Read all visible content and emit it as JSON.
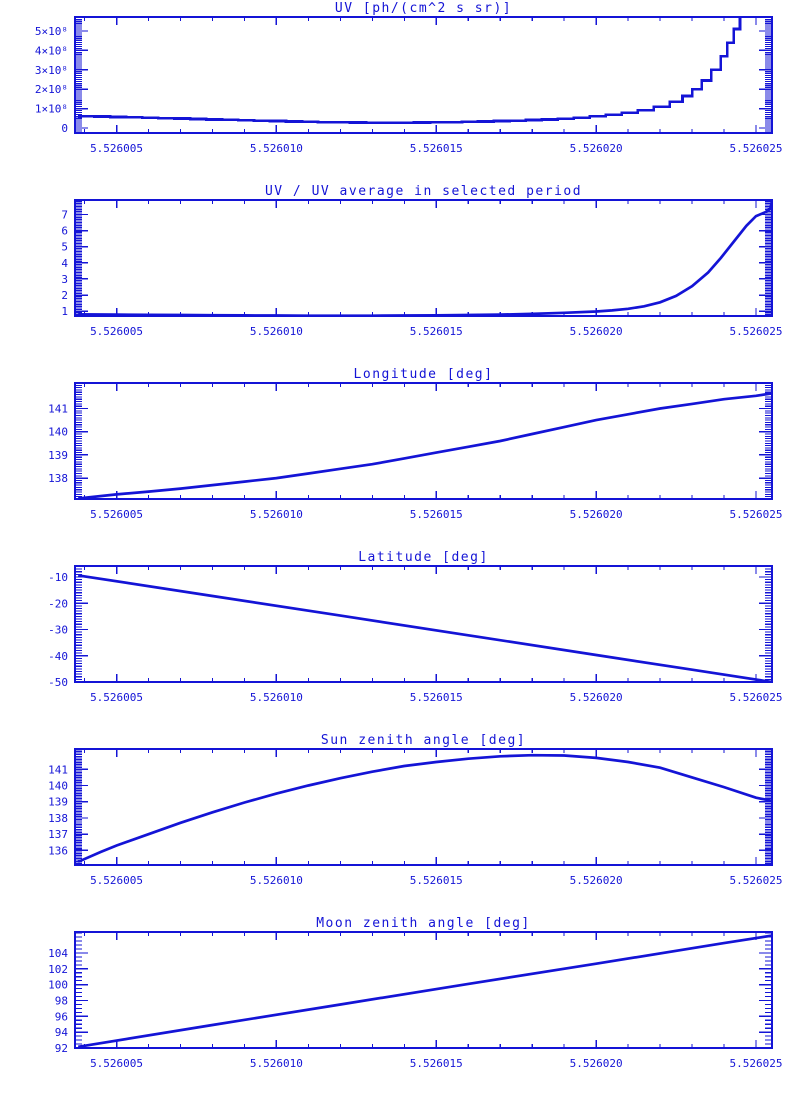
{
  "page": {
    "background": "#ffffff",
    "plot_color": "#1414d6",
    "layout": "six stacked line plots, shared x axis range"
  },
  "chart_data": [
    {
      "type": "line",
      "title": "UV [ph/(cm^2 s sr)]",
      "step": true,
      "xlim": [
        5.5260037,
        5.5260255
      ],
      "xticks": [
        5.526005,
        5.52601,
        5.526015,
        5.52602,
        5.526025
      ],
      "xtick_labels": [
        "5.526005",
        "5.526010",
        "5.526015",
        "5.526020",
        "5.526025"
      ],
      "xminor": 1e-06,
      "ylim": [
        -0.26,
        5.72
      ],
      "yticks": [
        0,
        1,
        2,
        3,
        4,
        5
      ],
      "ytick_labels": [
        "0",
        "1×10⁸",
        "2×10⁸",
        "3×10⁸",
        "4×10⁸",
        "5×10⁸"
      ],
      "yminor": 0.1,
      "y_scale_note": "y values in units of 10^8",
      "x": [
        5.5260038,
        5.5260043,
        5.5260048,
        5.5260053,
        5.5260058,
        5.5260063,
        5.5260068,
        5.5260073,
        5.5260078,
        5.5260083,
        5.5260088,
        5.5260093,
        5.5260098,
        5.5260103,
        5.5260108,
        5.5260113,
        5.5260118,
        5.5260123,
        5.5260128,
        5.5260133,
        5.5260138,
        5.5260143,
        5.5260148,
        5.5260153,
        5.5260158,
        5.5260163,
        5.5260168,
        5.5260173,
        5.5260178,
        5.5260183,
        5.5260188,
        5.5260193,
        5.5260198,
        5.5260203,
        5.5260208,
        5.5260213,
        5.5260218,
        5.5260223,
        5.5260227,
        5.526023,
        5.5260233,
        5.5260236,
        5.5260239,
        5.5260241,
        5.5260243,
        5.5260245
      ],
      "y": [
        0.6,
        0.59,
        0.57,
        0.55,
        0.53,
        0.51,
        0.49,
        0.46,
        0.44,
        0.42,
        0.4,
        0.38,
        0.36,
        0.34,
        0.32,
        0.3,
        0.29,
        0.28,
        0.27,
        0.27,
        0.27,
        0.28,
        0.29,
        0.3,
        0.32,
        0.34,
        0.36,
        0.38,
        0.41,
        0.44,
        0.48,
        0.53,
        0.6,
        0.68,
        0.78,
        0.92,
        1.1,
        1.35,
        1.65,
        2.0,
        2.45,
        3.0,
        3.7,
        4.4,
        5.1,
        5.72
      ]
    },
    {
      "type": "line",
      "title": "UV / UV average in selected period",
      "step": false,
      "xlim": [
        5.5260037,
        5.5260255
      ],
      "xticks": [
        5.526005,
        5.52601,
        5.526015,
        5.52602,
        5.526025
      ],
      "xtick_labels": [
        "5.526005",
        "5.526010",
        "5.526015",
        "5.526020",
        "5.526025"
      ],
      "xminor": 1e-06,
      "ylim": [
        0.7,
        7.9
      ],
      "yticks": [
        1,
        2,
        3,
        4,
        5,
        6,
        7
      ],
      "ytick_labels": [
        "1",
        "2",
        "3",
        "4",
        "5",
        "6",
        "7"
      ],
      "yminor": 0.1,
      "x": [
        5.5260038,
        5.526005,
        5.526006,
        5.526007,
        5.526008,
        5.526009,
        5.52601,
        5.526011,
        5.526012,
        5.526013,
        5.526014,
        5.526015,
        5.526016,
        5.526017,
        5.526018,
        5.526019,
        5.52602,
        5.5260205,
        5.526021,
        5.5260215,
        5.526022,
        5.5260225,
        5.526023,
        5.5260235,
        5.5260239,
        5.5260243,
        5.5260247,
        5.526025,
        5.5260253,
        5.52602545,
        5.5260255
      ],
      "y": [
        0.8,
        0.79,
        0.77,
        0.76,
        0.75,
        0.74,
        0.73,
        0.72,
        0.72,
        0.72,
        0.73,
        0.74,
        0.76,
        0.79,
        0.83,
        0.9,
        0.98,
        1.05,
        1.15,
        1.3,
        1.55,
        1.95,
        2.55,
        3.4,
        4.3,
        5.3,
        6.3,
        6.9,
        7.15,
        7.4,
        7.85
      ]
    },
    {
      "type": "line",
      "title": "Longitude [deg]",
      "step": false,
      "xlim": [
        5.5260037,
        5.5260255
      ],
      "xticks": [
        5.526005,
        5.52601,
        5.526015,
        5.52602,
        5.526025
      ],
      "xtick_labels": [
        "5.526005",
        "5.526010",
        "5.526015",
        "5.526020",
        "5.526025"
      ],
      "xminor": 1e-06,
      "ylim": [
        137.1,
        142.1
      ],
      "yticks": [
        138,
        139,
        140,
        141
      ],
      "ytick_labels": [
        "138",
        "139",
        "140",
        "141"
      ],
      "yminor": 0.1,
      "x": [
        5.5260038,
        5.526005,
        5.526006,
        5.526007,
        5.526008,
        5.526009,
        5.52601,
        5.526011,
        5.526012,
        5.526013,
        5.526014,
        5.526015,
        5.526016,
        5.526017,
        5.526018,
        5.526019,
        5.52602,
        5.526021,
        5.526022,
        5.526023,
        5.526024,
        5.526025,
        5.5260255
      ],
      "y": [
        137.12,
        137.3,
        137.42,
        137.55,
        137.7,
        137.85,
        138.0,
        138.2,
        138.4,
        138.6,
        138.85,
        139.1,
        139.35,
        139.6,
        139.9,
        140.2,
        140.5,
        140.75,
        141.0,
        141.2,
        141.4,
        141.55,
        141.65
      ]
    },
    {
      "type": "line",
      "title": "Latitude [deg]",
      "step": false,
      "xlim": [
        5.5260037,
        5.5260255
      ],
      "xticks": [
        5.526005,
        5.52601,
        5.526015,
        5.52602,
        5.526025
      ],
      "xtick_labels": [
        "5.526005",
        "5.526010",
        "5.526015",
        "5.526020",
        "5.526025"
      ],
      "xminor": 1e-06,
      "ylim": [
        -50,
        -5.8
      ],
      "yticks": [
        -50,
        -40,
        -30,
        -20,
        -10
      ],
      "ytick_labels": [
        "-50",
        "-40",
        "-30",
        "-20",
        "-10"
      ],
      "yminor": 1,
      "x": [
        5.5260038,
        5.526008,
        5.526012,
        5.526016,
        5.52602,
        5.526023,
        5.5260255
      ],
      "y": [
        -9.4,
        -17.25,
        -24.7,
        -32.2,
        -39.7,
        -45.3,
        -50.0
      ]
    },
    {
      "type": "line",
      "title": "Sun zenith angle [deg]",
      "step": false,
      "xlim": [
        5.5260037,
        5.5260255
      ],
      "xticks": [
        5.526005,
        5.52601,
        5.526015,
        5.52602,
        5.526025
      ],
      "xtick_labels": [
        "5.526005",
        "5.526010",
        "5.526015",
        "5.526020",
        "5.526025"
      ],
      "xminor": 1e-06,
      "ylim": [
        135.1,
        142.25
      ],
      "yticks": [
        136,
        137,
        138,
        139,
        140,
        141
      ],
      "ytick_labels": [
        "136",
        "137",
        "138",
        "139",
        "140",
        "141"
      ],
      "yminor": 0.1,
      "x": [
        5.5260038,
        5.5260045,
        5.526005,
        5.526006,
        5.526007,
        5.526008,
        5.526009,
        5.52601,
        5.526011,
        5.526012,
        5.526013,
        5.526014,
        5.526015,
        5.526016,
        5.526017,
        5.526018,
        5.526019,
        5.52602,
        5.526021,
        5.526022,
        5.526023,
        5.526024,
        5.526025,
        5.5260255
      ],
      "y": [
        135.3,
        135.9,
        136.3,
        137.0,
        137.7,
        138.35,
        138.95,
        139.5,
        140.0,
        140.45,
        140.85,
        141.2,
        141.45,
        141.65,
        141.8,
        141.87,
        141.85,
        141.7,
        141.45,
        141.1,
        140.5,
        139.9,
        139.25,
        139.05
      ]
    },
    {
      "type": "line",
      "title": "Moon zenith angle [deg]",
      "step": false,
      "xlim": [
        5.5260037,
        5.5260255
      ],
      "xticks": [
        5.526005,
        5.52601,
        5.526015,
        5.52602,
        5.526025
      ],
      "xtick_labels": [
        "5.526005",
        "5.526010",
        "5.526015",
        "5.526020",
        "5.526025"
      ],
      "xminor": 1e-06,
      "ylim": [
        92,
        106.65
      ],
      "yticks": [
        92,
        94,
        96,
        98,
        100,
        102,
        104
      ],
      "ytick_labels": [
        "92",
        "94",
        "96",
        "98",
        "100",
        "102",
        "104"
      ],
      "yminor": 0.5,
      "x": [
        5.5260038,
        5.526008,
        5.526012,
        5.526016,
        5.52602,
        5.526024,
        5.5260255
      ],
      "y": [
        92.15,
        94.9,
        97.5,
        100.1,
        102.65,
        105.25,
        106.2
      ]
    }
  ]
}
